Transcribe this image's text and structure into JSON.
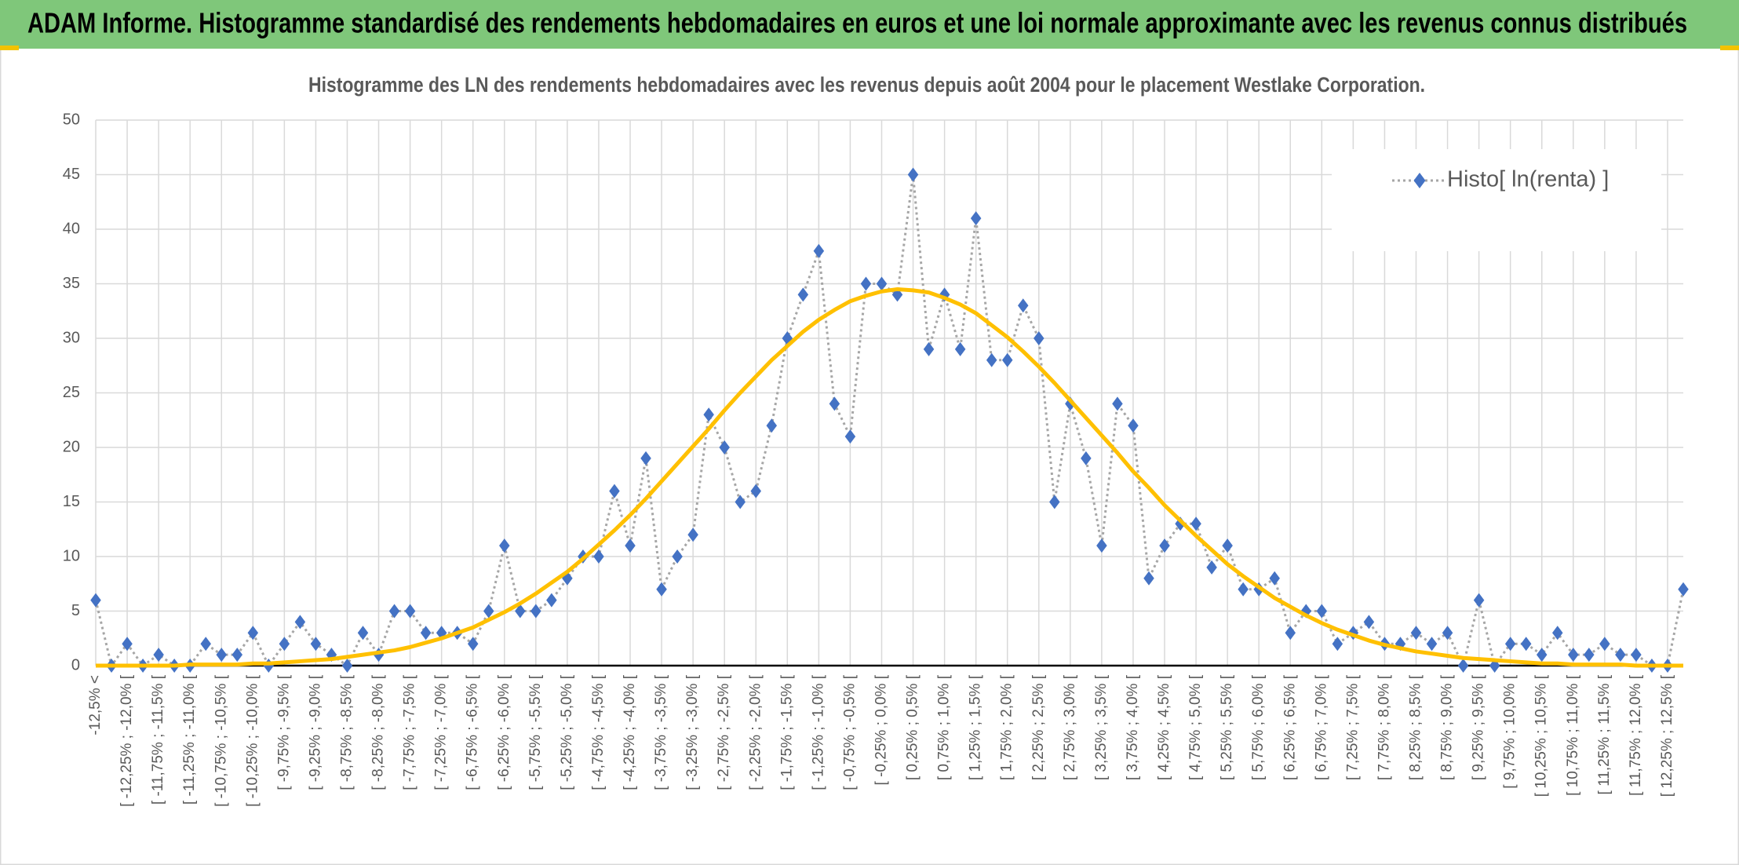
{
  "header": {
    "title": "ADAM Informe. Histogramme standardisé des rendements hebdomadaires en euros et une loi normale approximante avec les revenus connus distribués"
  },
  "chart_data": {
    "type": "line",
    "title": "Histogramme des LN des rendements hebdomadaires avec les revenus depuis août 2004 pour le placement Westlake Corporation.",
    "categories": [
      "-12,5% <",
      null,
      "[ -12,25% ; -12,0% [",
      null,
      "[ -11,75% ; -11,5% [",
      null,
      "[ -11,25% ; -11,0% [",
      null,
      "[ -10,75% ; -10,5% [",
      null,
      "[ -10,25% ; -10,0% [",
      null,
      "[ -9,75% ; -9,5% [",
      null,
      "[ -9,25% ; -9,0% [",
      null,
      "[ -8,75% ; -8,5% [",
      null,
      "[ -8,25% ; -8,0% [",
      null,
      "[ -7,75% ; -7,5% [",
      null,
      "[ -7,25% ; -7,0% [",
      null,
      "[ -6,75% ; -6,5% [",
      null,
      "[ -6,25% ; -6,0% [",
      null,
      "[ -5,75% ; -5,5% [",
      null,
      "[ -5,25% ; -5,0% [",
      null,
      "[ -4,75% ; -4,5% [",
      null,
      "[ -4,25% ; -4,0% [",
      null,
      "[ -3,75% ; -3,5% [",
      null,
      "[ -3,25% ; -3,0% [",
      null,
      "[ -2,75% ; -2,5% [",
      null,
      "[ -2,25% ; -2,0% [",
      null,
      "[ -1,75% ; -1,5% [",
      null,
      "[ -1,25% ; -1,0% [",
      null,
      "[ -0,75% ; -0,5% [",
      null,
      "[ -0,25% ; 0,0% [",
      null,
      "[ 0,25% ; 0,5% [",
      null,
      "[ 0,75% ; 1,0% [",
      null,
      "[ 1,25% ; 1,5% [",
      null,
      "[ 1,75% ; 2,0% [",
      null,
      "[ 2,25% ; 2,5% [",
      null,
      "[ 2,75% ; 3,0% [",
      null,
      "[ 3,25% ; 3,5% [",
      null,
      "[ 3,75% ; 4,0% [",
      null,
      "[ 4,25% ; 4,5% [",
      null,
      "[ 4,75% ; 5,0% [",
      null,
      "[ 5,25% ; 5,5% [",
      null,
      "[ 5,75% ; 6,0% [",
      null,
      "[ 6,25% ; 6,5% [",
      null,
      "[ 6,75% ; 7,0% [",
      null,
      "[ 7,25% ; 7,5% [",
      null,
      "[ 7,75% ; 8,0% [",
      null,
      "[ 8,25% ; 8,5% [",
      null,
      "[ 8,75% ; 9,0% [",
      null,
      "[ 9,25% ; 9,5% [",
      null,
      "[ 9,75% ; 10,0% [",
      null,
      "[ 10,25% ; 10,5% [",
      null,
      "[ 10,75% ; 11,0% [",
      null,
      "[ 11,25% ; 11,5% [",
      null,
      "[ 11,75% ; 12,0% [",
      null,
      "[ 12,25% ; 12,5% [",
      null
    ],
    "series": [
      {
        "name": "Histo[ ln(renta) ]",
        "color": "#4472c4",
        "line_color": "#a6a6a6",
        "values": [
          6,
          0,
          2,
          0,
          1,
          0,
          0,
          2,
          1,
          1,
          3,
          0,
          2,
          4,
          2,
          1,
          0,
          3,
          1,
          5,
          5,
          3,
          3,
          3,
          2,
          5,
          11,
          5,
          5,
          6,
          8,
          10,
          10,
          16,
          11,
          19,
          7,
          10,
          12,
          23,
          20,
          15,
          16,
          22,
          30,
          34,
          38,
          24,
          21,
          35,
          35,
          34,
          45,
          29,
          34,
          29,
          41,
          28,
          28,
          33,
          30,
          15,
          24,
          19,
          11,
          24,
          22,
          8,
          11,
          13,
          13,
          9,
          11,
          7,
          7,
          8,
          3,
          5,
          5,
          2,
          3,
          4,
          2,
          2,
          3,
          2,
          3,
          0,
          6,
          0,
          2,
          2,
          1,
          3,
          1,
          1,
          2,
          1,
          1,
          0,
          0,
          7
        ]
      },
      {
        "color": "#ffc000",
        "values": [
          0.0,
          0.0,
          0.0,
          0.0,
          0.0,
          0.0,
          0.1,
          0.1,
          0.1,
          0.1,
          0.2,
          0.2,
          0.3,
          0.4,
          0.5,
          0.6,
          0.8,
          1.0,
          1.2,
          1.4,
          1.7,
          2.1,
          2.5,
          3.0,
          3.5,
          4.2,
          4.9,
          5.7,
          6.6,
          7.6,
          8.6,
          9.8,
          11.1,
          12.4,
          13.8,
          15.3,
          16.9,
          18.5,
          20.1,
          21.7,
          23.4,
          25.0,
          26.5,
          28.0,
          29.3,
          30.6,
          31.7,
          32.6,
          33.4,
          33.9,
          34.3,
          34.5,
          34.4,
          34.2,
          33.7,
          33.1,
          32.3,
          31.2,
          30.1,
          28.8,
          27.4,
          25.9,
          24.3,
          22.7,
          21.1,
          19.5,
          17.8,
          16.3,
          14.7,
          13.3,
          11.9,
          10.6,
          9.3,
          8.2,
          7.2,
          6.2,
          5.4,
          4.6,
          3.9,
          3.3,
          2.8,
          2.3,
          1.9,
          1.6,
          1.3,
          1.1,
          0.9,
          0.7,
          0.6,
          0.5,
          0.4,
          0.3,
          0.2,
          0.2,
          0.1,
          0.1,
          0.1,
          0.1,
          0.0,
          0.0,
          0.0,
          0.0
        ]
      }
    ],
    "ylim": [
      0,
      50
    ],
    "yticks": [
      0,
      5,
      10,
      15,
      20,
      25,
      30,
      35,
      40,
      45,
      50
    ],
    "grid": true,
    "legend": "top-right"
  }
}
